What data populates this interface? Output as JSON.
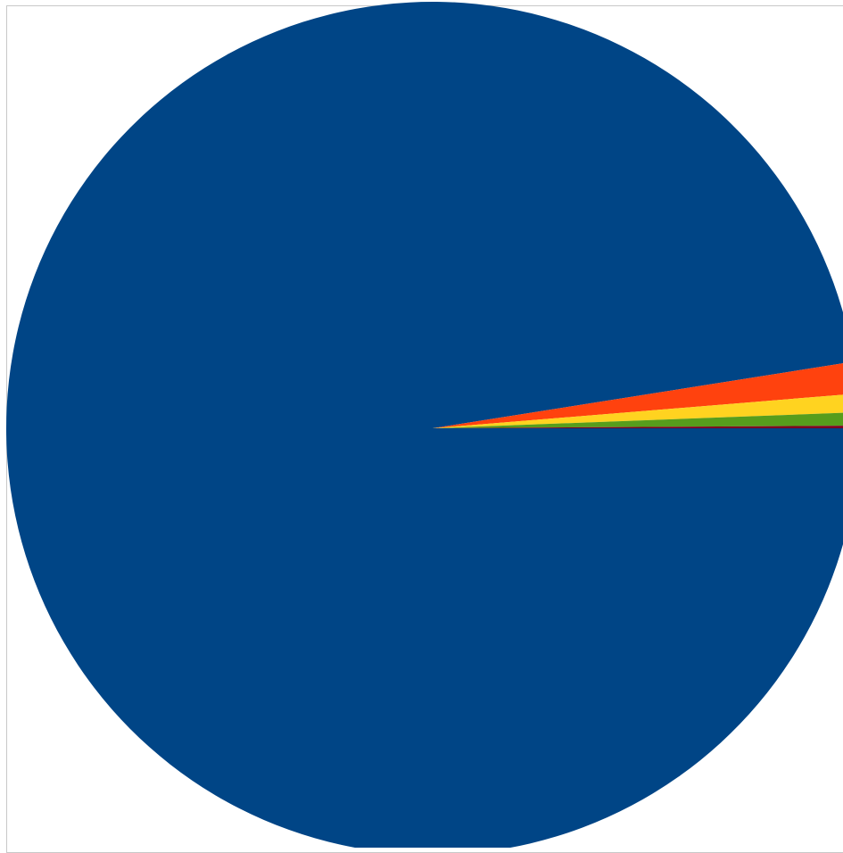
{
  "chart_data": {
    "type": "pie",
    "slices": [
      {
        "value": 97.5,
        "color": "#004586"
      },
      {
        "value": 1.2,
        "color": "#FF420E"
      },
      {
        "value": 0.7,
        "color": "#FFD320"
      },
      {
        "value": 0.5,
        "color": "#579D1C"
      },
      {
        "value": 0.1,
        "color": "#7E0021"
      }
    ],
    "title": "",
    "legend": "none",
    "start_angle_degrees": 0,
    "direction": "clockwise"
  }
}
